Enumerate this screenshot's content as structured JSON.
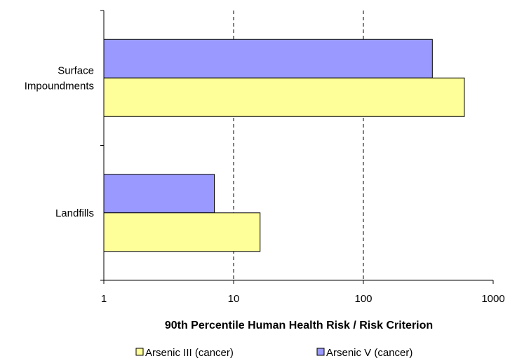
{
  "chart_data": {
    "type": "bar",
    "orientation": "horizontal",
    "x_scale": "log",
    "xlim": [
      1,
      1000
    ],
    "x_ticks": [
      "1",
      "10",
      "100",
      "1000"
    ],
    "xlabel": "90th Percentile Human Health Risk / Risk Criterion",
    "ylabel": "",
    "grid": "vertical dashed gridlines at 10 and 100",
    "legend_position": "bottom",
    "categories": [
      {
        "lines": [
          "Surface",
          "Impoundments"
        ]
      },
      {
        "lines": [
          "Landfills"
        ]
      }
    ],
    "series": [
      {
        "name": "Arsenic III (cancer)",
        "color": "#ffff99",
        "values": [
          600,
          16
        ]
      },
      {
        "name": "Arsenic V (cancer)",
        "color": "#9999ff",
        "values": [
          340,
          7.1
        ]
      }
    ]
  }
}
